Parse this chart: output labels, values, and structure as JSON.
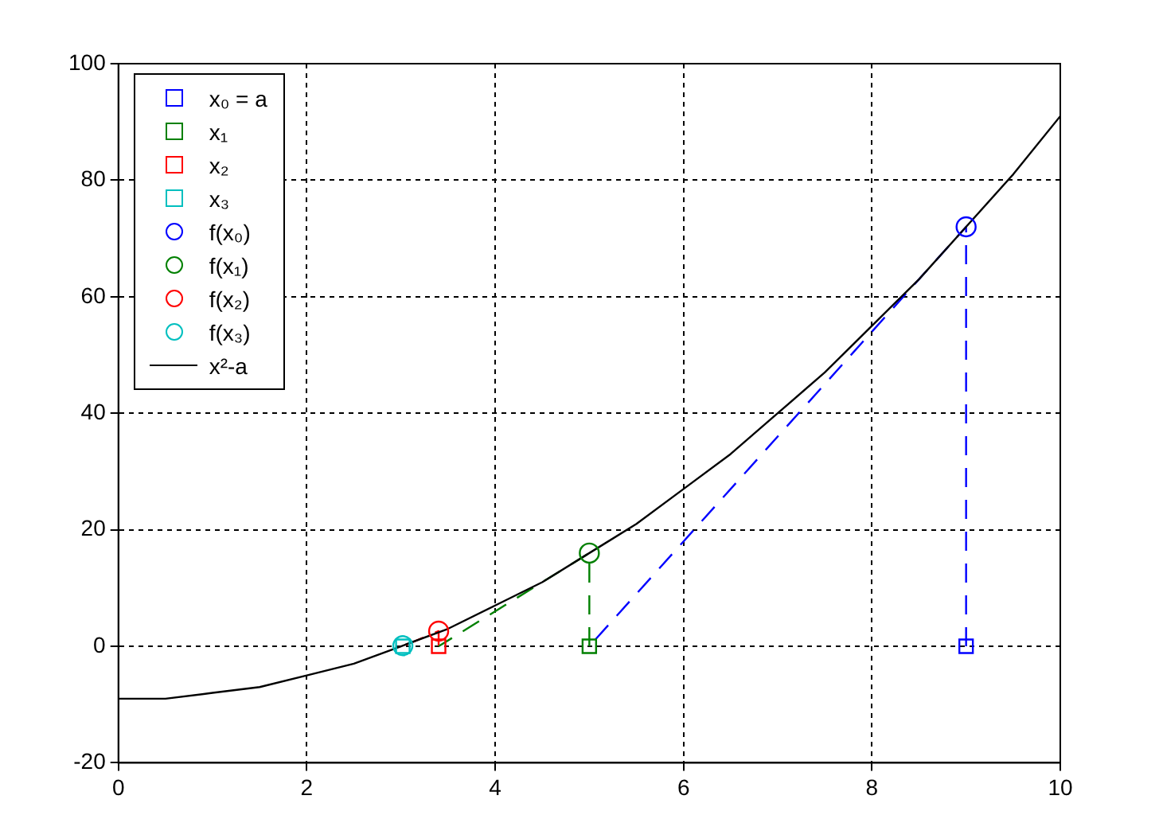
{
  "chart_data": {
    "type": "scatter",
    "xlim": [
      0,
      10
    ],
    "ylim": [
      -20,
      100
    ],
    "xticks": [
      0,
      2,
      4,
      6,
      8,
      10
    ],
    "yticks": [
      -20,
      0,
      20,
      40,
      60,
      80,
      100
    ],
    "grid": true,
    "legend": "top left",
    "series": [
      {
        "name": "x₀ = a",
        "type": "scatter",
        "marker": "square",
        "color": "#0000ff",
        "x": [
          9
        ],
        "values": [
          0
        ]
      },
      {
        "name": "x₁",
        "type": "scatter",
        "marker": "square",
        "color": "#008000",
        "x": [
          5
        ],
        "values": [
          0
        ]
      },
      {
        "name": "x₂",
        "type": "scatter",
        "marker": "square",
        "color": "#ff0000",
        "x": [
          3.4
        ],
        "values": [
          0
        ]
      },
      {
        "name": "x₃",
        "type": "scatter",
        "marker": "square",
        "color": "#00bfbf",
        "x": [
          3.02
        ],
        "values": [
          0
        ]
      },
      {
        "name": "f(x₀)",
        "type": "scatter",
        "marker": "circle",
        "color": "#0000ff",
        "x": [
          9
        ],
        "values": [
          72
        ]
      },
      {
        "name": "f(x₁)",
        "type": "scatter",
        "marker": "circle",
        "color": "#008000",
        "x": [
          5
        ],
        "values": [
          16
        ]
      },
      {
        "name": "f(x₂)",
        "type": "scatter",
        "marker": "circle",
        "color": "#ff0000",
        "x": [
          3.4
        ],
        "values": [
          2.6
        ]
      },
      {
        "name": "f(x₃)",
        "type": "scatter",
        "marker": "circle",
        "color": "#00bfbf",
        "x": [
          3.02
        ],
        "values": [
          0.1
        ]
      },
      {
        "name": "x²-a",
        "type": "line",
        "marker": "none",
        "line_style": "solid",
        "color": "#000000",
        "x": [
          0,
          0.5,
          1,
          1.5,
          2,
          2.5,
          3,
          3.5,
          4,
          4.5,
          5,
          5.5,
          6,
          6.5,
          7,
          7.5,
          8,
          8.5,
          9,
          9.5,
          10
        ],
        "values": [
          -9,
          -9,
          -8,
          -7,
          -5,
          -3,
          0,
          3,
          7,
          11,
          16,
          21,
          27,
          33,
          40,
          47,
          55,
          63,
          72,
          81,
          91
        ]
      },
      {
        "type": "line",
        "marker": "none",
        "line_style": "dashed",
        "color": "#0000ff",
        "x": [
          9,
          9,
          5
        ],
        "values": [
          0,
          72,
          0
        ]
      },
      {
        "type": "line",
        "marker": "none",
        "line_style": "dashed",
        "color": "#008000",
        "x": [
          5,
          5,
          3.4
        ],
        "values": [
          0,
          16,
          0
        ]
      },
      {
        "type": "line",
        "marker": "none",
        "line_style": "dashed",
        "color": "#ff0000",
        "x": [
          3.4,
          3.4,
          3.02
        ],
        "values": [
          0,
          2.6,
          0
        ]
      }
    ]
  }
}
